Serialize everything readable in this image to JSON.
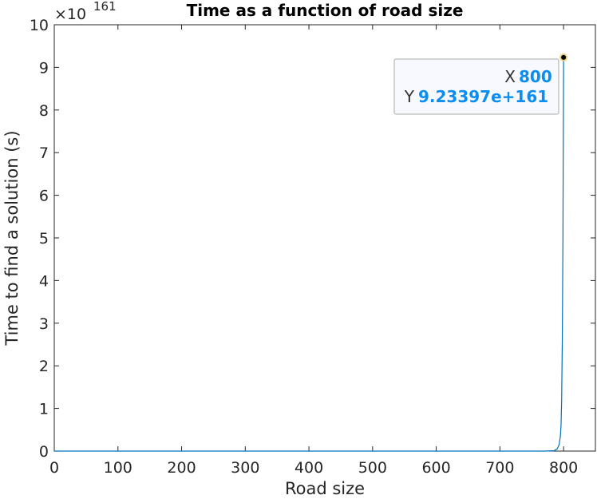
{
  "chart_data": {
    "type": "line",
    "title": "Time as a function of road size",
    "xlabel": "Road size",
    "ylabel": "Time to find a solution (s)",
    "exponent_label": "×10",
    "exponent_power": "161",
    "xlim": [
      0,
      850
    ],
    "ylim": [
      0,
      10
    ],
    "y_scale_factor": "1e161",
    "grid": false,
    "x_ticks": [
      "0",
      "100",
      "200",
      "300",
      "400",
      "500",
      "600",
      "700",
      "800"
    ],
    "y_ticks": [
      "0",
      "1",
      "2",
      "3",
      "4",
      "5",
      "6",
      "7",
      "8",
      "9",
      "10"
    ],
    "series": [
      {
        "color": "#0072bd",
        "x": [
          0,
          100,
          200,
          300,
          400,
          500,
          600,
          700,
          770,
          785,
          790,
          793,
          795,
          796,
          797,
          798,
          799,
          800
        ],
        "y": [
          0,
          0,
          0,
          0,
          0,
          0,
          0,
          0,
          0,
          0.01,
          0.05,
          0.15,
          0.35,
          0.6,
          1.2,
          2.6,
          5.0,
          9.23397
        ]
      }
    ],
    "datatip": {
      "x_key": "X",
      "x_value": "800",
      "y_key": "Y",
      "y_value": "9.23397e+161"
    }
  }
}
